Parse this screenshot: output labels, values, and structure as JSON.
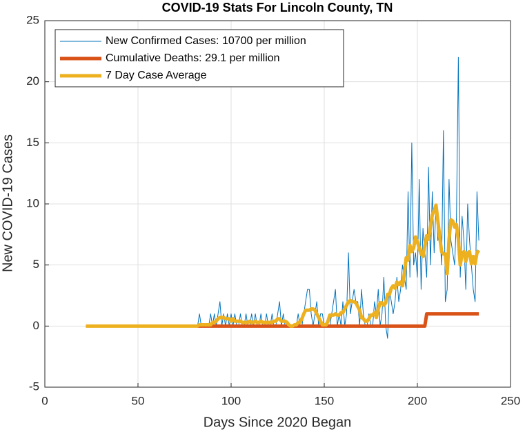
{
  "chart_data": {
    "type": "line",
    "title": "COVID-19 Stats For Lincoln County, TN",
    "xlabel": "Days Since 2020 Began",
    "ylabel": "New COVID-19 Cases",
    "xlim": [
      0,
      250
    ],
    "xticks": [
      0,
      50,
      100,
      150,
      200,
      250
    ],
    "ylim": [
      -5,
      25
    ],
    "yticks": [
      -5,
      0,
      5,
      10,
      15,
      20,
      25
    ],
    "grid": true,
    "legend": "upper left",
    "x": [
      22,
      80,
      81,
      82,
      83,
      84,
      85,
      86,
      87,
      88,
      89,
      90,
      91,
      92,
      93,
      94,
      95,
      96,
      97,
      98,
      99,
      100,
      101,
      102,
      103,
      104,
      105,
      106,
      107,
      108,
      109,
      110,
      111,
      112,
      113,
      114,
      115,
      116,
      117,
      118,
      119,
      120,
      121,
      122,
      123,
      124,
      125,
      126,
      127,
      128,
      129,
      130,
      131,
      132,
      133,
      134,
      135,
      136,
      137,
      138,
      139,
      140,
      141,
      142,
      143,
      144,
      145,
      146,
      147,
      148,
      149,
      150,
      151,
      152,
      153,
      154,
      155,
      156,
      157,
      158,
      159,
      160,
      161,
      162,
      163,
      164,
      165,
      166,
      167,
      168,
      169,
      170,
      171,
      172,
      173,
      174,
      175,
      176,
      177,
      178,
      179,
      180,
      181,
      182,
      183,
      184,
      185,
      186,
      187,
      188,
      189,
      190,
      191,
      192,
      193,
      194,
      195,
      196,
      197,
      198,
      199,
      200,
      201,
      202,
      203,
      204,
      205,
      206,
      207,
      208,
      209,
      210,
      211,
      212,
      213,
      214,
      215,
      216,
      217,
      218,
      219,
      220,
      221,
      222,
      223,
      224,
      225,
      226,
      227,
      228,
      229,
      230,
      231,
      232,
      233
    ],
    "series": [
      {
        "name": "New Confirmed Cases: 10700 per million",
        "color": "#0072bd",
        "width": 1,
        "values": [
          0,
          0,
          0,
          0,
          1,
          0,
          0,
          0,
          0,
          0,
          1,
          0,
          1,
          0,
          1,
          2,
          0,
          1,
          0,
          1,
          0,
          1,
          0,
          1,
          0,
          0,
          1,
          0,
          0,
          1,
          0,
          0,
          1,
          0,
          1,
          0,
          0,
          1,
          0,
          0,
          1,
          0,
          0,
          1,
          0,
          0,
          1,
          2,
          0,
          1,
          0,
          0,
          0,
          0,
          0,
          0,
          0,
          1,
          0,
          0,
          1,
          2,
          3,
          3,
          1,
          0,
          1,
          2,
          0,
          1,
          1,
          0,
          0,
          0,
          0,
          1,
          2,
          3,
          0,
          1,
          0,
          2,
          0,
          1,
          6,
          1,
          2,
          3,
          2,
          2,
          0,
          3,
          1,
          0,
          0,
          1,
          0,
          0,
          2,
          1,
          3,
          0,
          1,
          4,
          0,
          -1,
          3,
          2,
          1,
          2,
          4,
          2,
          3,
          5,
          4,
          3,
          11,
          4,
          15,
          5,
          6,
          4,
          12,
          3,
          8,
          6,
          4,
          13,
          5,
          11,
          6,
          10,
          7,
          8,
          5,
          16,
          2,
          3,
          12,
          7,
          6,
          5,
          9,
          22,
          4,
          9,
          7,
          3,
          10,
          7,
          5,
          3,
          2,
          11,
          7
        ]
      },
      {
        "name": "Cumulative Deaths: 29.1 per million",
        "color": "#d95319",
        "width": 5,
        "values": [
          null,
          null,
          null,
          0,
          0,
          0,
          0,
          0,
          0,
          0,
          0,
          0,
          0,
          0,
          0,
          0,
          0,
          0,
          0,
          0,
          0,
          0,
          0,
          0,
          0,
          0,
          0,
          0,
          0,
          0,
          0,
          0,
          0,
          0,
          0,
          0,
          0,
          0,
          0,
          0,
          0,
          0,
          0,
          0,
          0,
          0,
          0,
          0,
          0,
          0,
          0,
          0,
          0,
          0,
          0,
          0,
          0,
          0,
          0,
          0,
          0,
          0,
          0,
          0,
          0,
          0,
          0,
          0,
          0,
          0,
          0,
          0,
          0,
          0,
          0,
          0,
          0,
          0,
          0,
          0,
          0,
          0,
          0,
          0,
          0,
          0,
          0,
          0,
          0,
          0,
          0,
          0,
          0,
          0,
          0,
          0,
          0,
          0,
          0,
          0,
          0,
          0,
          0,
          0,
          0,
          0,
          0,
          0,
          0,
          0,
          0,
          0,
          0,
          0,
          0,
          0,
          0,
          0,
          0,
          0,
          0,
          0,
          0,
          0,
          0,
          0,
          1,
          1,
          1,
          1,
          1,
          1,
          1,
          1,
          1,
          1,
          1,
          1,
          1,
          1,
          1,
          1,
          1,
          1,
          1,
          1,
          1,
          1,
          1,
          1,
          1,
          1,
          1,
          1,
          1
        ]
      },
      {
        "name": "7 Day Case Average",
        "color": "#edb120",
        "width": 5,
        "values": [
          0,
          0,
          0,
          0,
          0.1,
          0.1,
          0.1,
          0.1,
          0.1,
          0.1,
          0.1,
          0.3,
          0.3,
          0.4,
          0.6,
          0.7,
          0.7,
          0.7,
          0.6,
          0.6,
          0.6,
          0.4,
          0.6,
          0.4,
          0.4,
          0.4,
          0.4,
          0.3,
          0.3,
          0.3,
          0.3,
          0.4,
          0.3,
          0.3,
          0.4,
          0.3,
          0.3,
          0.4,
          0.3,
          0.3,
          0.3,
          0.3,
          0.3,
          0.3,
          0.4,
          0.4,
          0.6,
          0.6,
          0.4,
          0.4,
          0.4,
          0.3,
          0.1,
          0,
          0,
          0.1,
          0.1,
          0.3,
          0.3,
          0.6,
          1,
          1.3,
          1.3,
          1.3,
          1.4,
          1.4,
          1.3,
          1,
          0.7,
          0.4,
          0.1,
          0.1,
          0.1,
          0.4,
          0.9,
          0.9,
          0.9,
          1,
          0.9,
          0.9,
          1.1,
          1.1,
          1.4,
          1.7,
          2,
          2.1,
          2,
          2,
          1.9,
          1.6,
          1.3,
          0.7,
          0.6,
          0.4,
          0.4,
          0.6,
          0.9,
          0.9,
          1.1,
          0.7,
          1.4,
          1.9,
          1.9,
          1.7,
          1.9,
          2.6,
          2.6,
          3.1,
          3.3,
          3.1,
          3.6,
          3.4,
          3.6,
          3.3,
          4.3,
          5.6,
          5.4,
          6.6,
          6.1,
          6.4,
          7.3,
          6.9,
          6.4,
          5.9,
          5.7,
          6.6,
          7.4,
          7.1,
          8.1,
          9.1,
          9.4,
          9.9,
          8.6,
          7.3,
          6.1,
          5.9,
          5.9,
          4.3,
          7.1,
          8.7,
          8.6,
          8.1,
          8.3,
          7.1,
          5,
          5.9,
          6.1,
          5.3,
          6,
          6.1,
          5.1,
          5.7,
          5.1,
          6,
          6.2
        ]
      }
    ]
  }
}
